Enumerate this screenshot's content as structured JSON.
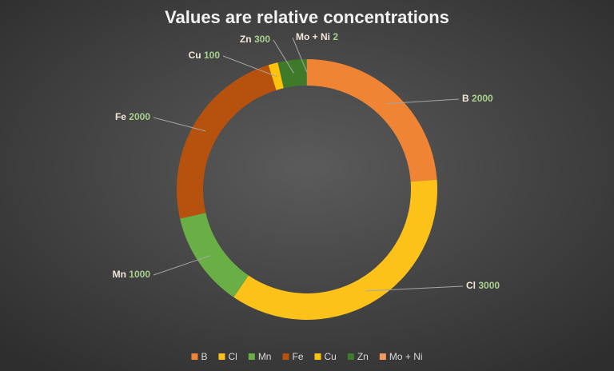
{
  "chart_data": {
    "type": "doughnut",
    "title": "Values are relative concentrations",
    "categories": [
      "B",
      "Cl",
      "Mn",
      "Fe",
      "Cu",
      "Zn",
      "Mo + Ni"
    ],
    "values": [
      2000,
      3000,
      1000,
      2000,
      100,
      300,
      2
    ],
    "colors": [
      "#ee8434",
      "#fcc21a",
      "#6aaf45",
      "#b6520e",
      "#fdc20c",
      "#3e7a2a",
      "#f39a5c"
    ]
  }
}
